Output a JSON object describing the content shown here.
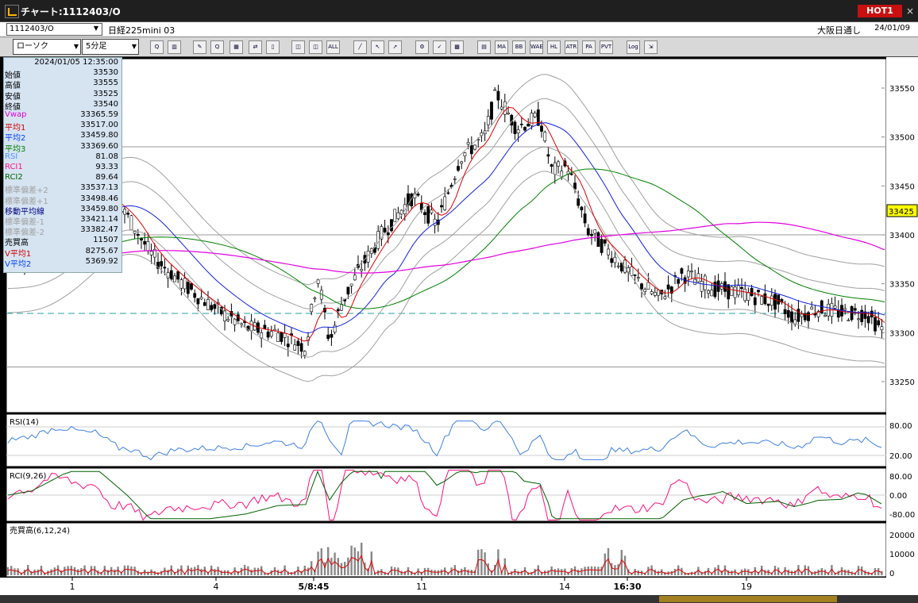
{
  "window": {
    "title": "チャート:1112403/O",
    "hot_label": "HOT1",
    "close_glyph": "×"
  },
  "infobar": {
    "symbol_code": "1112403/O",
    "symbol_name": "日経225mini 03",
    "market": "大阪日通し",
    "date": "24/01/09"
  },
  "toolbar": {
    "chart_type": "ローソク",
    "interval": "5分足",
    "buttons": [
      {
        "name": "zoom-icon",
        "label": "Q"
      },
      {
        "name": "split-icon",
        "label": "▥"
      },
      {
        "name": "draw-icon",
        "label": "✎"
      },
      {
        "name": "search-icon",
        "label": "Q"
      },
      {
        "name": "chart-icon",
        "label": "▦"
      },
      {
        "name": "compare-icon",
        "label": "⇄"
      },
      {
        "name": "disabled-icon",
        "label": "▯"
      },
      {
        "name": "candle-icon",
        "label": "◫"
      },
      {
        "name": "candle-alt-icon",
        "label": "◫"
      },
      {
        "name": "all-icon",
        "label": "ALL"
      },
      {
        "name": "line-icon",
        "label": "╱"
      },
      {
        "name": "cursor-icon",
        "label": "↖"
      },
      {
        "name": "arrow-icon",
        "label": "➚"
      },
      {
        "name": "settings-icon",
        "label": "⚙"
      },
      {
        "name": "tools-icon",
        "label": "✓"
      },
      {
        "name": "color-icon",
        "label": "▩"
      },
      {
        "name": "volume-profile-icon",
        "label": "▤"
      },
      {
        "name": "ma-icon",
        "label": "MA"
      },
      {
        "name": "bb-icon",
        "label": "BB"
      },
      {
        "name": "wae-icon",
        "label": "WAE"
      },
      {
        "name": "hl-icon",
        "label": "HL"
      },
      {
        "name": "atr-icon",
        "label": "ATR"
      },
      {
        "name": "pa-icon",
        "label": "PA"
      },
      {
        "name": "pvt-icon",
        "label": "PVT"
      },
      {
        "name": "log-icon",
        "label": "Log"
      },
      {
        "name": "export-icon",
        "label": "⇲"
      }
    ]
  },
  "data_panel": {
    "datetime": "2024/01/05 12:35:00",
    "rows": [
      {
        "label": "始値",
        "value": "33530",
        "color": "#000000"
      },
      {
        "label": "高値",
        "value": "33555",
        "color": "#000000"
      },
      {
        "label": "安値",
        "value": "33525",
        "color": "#000000"
      },
      {
        "label": "終値",
        "value": "33540",
        "color": "#000000"
      },
      {
        "label": "Vwap",
        "value": "33365.59",
        "color": "#e000e0"
      },
      {
        "label": "平均1",
        "value": "33517.00",
        "color": "#d00000"
      },
      {
        "label": "平均2",
        "value": "33459.80",
        "color": "#0040ff"
      },
      {
        "label": "平均3",
        "value": "33369.60",
        "color": "#008000"
      },
      {
        "label": "RSI",
        "value": "81.08",
        "color": "#5090ff"
      },
      {
        "label": "RCI1",
        "value": "93.33",
        "color": "#ff1080"
      },
      {
        "label": "RCI2",
        "value": "89.64",
        "color": "#006000"
      },
      {
        "label": "標準偏差+2",
        "value": "33537.13",
        "color": "#a0a0a0"
      },
      {
        "label": "標準偏差+1",
        "value": "33498.46",
        "color": "#a0a0a0"
      },
      {
        "label": "移動平均線",
        "value": "33459.80",
        "color": "#000080"
      },
      {
        "label": "標準偏差-1",
        "value": "33421.14",
        "color": "#a0a0a0"
      },
      {
        "label": "標準偏差-2",
        "value": "33382.47",
        "color": "#a0a0a0"
      },
      {
        "label": "売買高",
        "value": "11507",
        "color": "#000000"
      },
      {
        "label": "V平均1",
        "value": "8275.67",
        "color": "#d00000"
      },
      {
        "label": "V平均2",
        "value": "5369.92",
        "color": "#0040ff"
      }
    ]
  },
  "price_axis": {
    "ticks": [
      "33550",
      "33500",
      "33450",
      "33400",
      "33350",
      "33300",
      "33250"
    ],
    "current": "33425"
  },
  "rsi_panel": {
    "label": "RSI(14)",
    "ticks": [
      "80.00",
      "20.00"
    ]
  },
  "rci_panel": {
    "label": "RCI(9,26)",
    "ticks": [
      "80.00",
      "0.00",
      "-80.00"
    ]
  },
  "vol_panel": {
    "label": "売買高(6,12,24)",
    "ticks": [
      "20000",
      "10000",
      "0"
    ]
  },
  "time_axis": {
    "labels": [
      "1",
      "4",
      "5/8:45",
      "11",
      "14",
      "16:30",
      "19"
    ],
    "bold": [
      "5/8:45",
      "16:30"
    ]
  },
  "colors": {
    "bg": "#000000",
    "bullish": "#ffffff",
    "bearish": "#000000",
    "ma1": "#e00000",
    "ma2": "#1020e0",
    "ma3": "#008000",
    "vwap": "#e000e0",
    "bands": "#a0a0a0",
    "dashed": "#20a0a0",
    "rsi": "#4080e0",
    "rci1": "#ff1080",
    "rci2": "#006000"
  }
}
